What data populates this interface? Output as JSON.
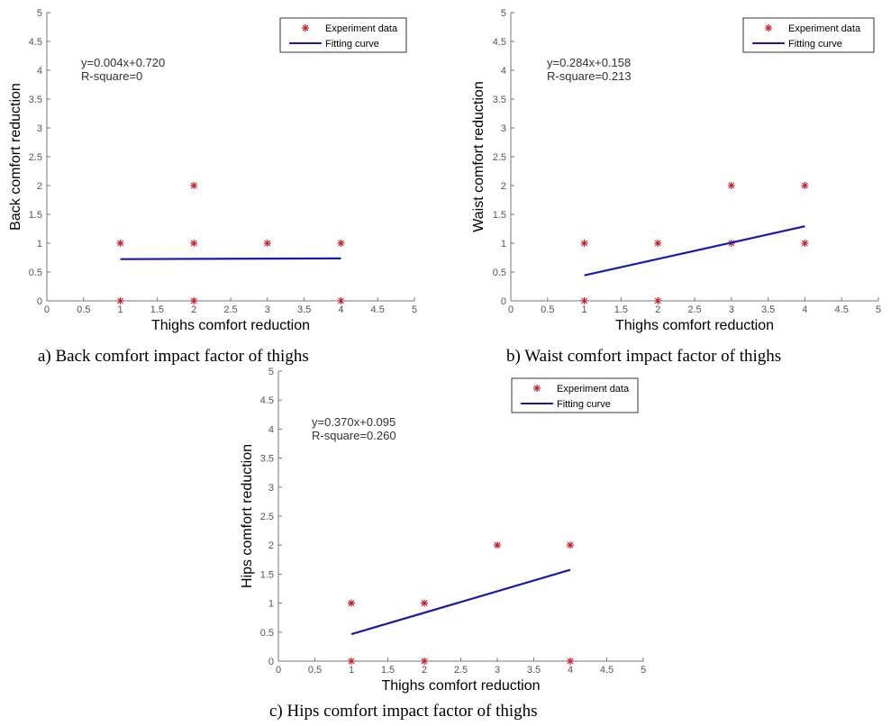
{
  "colors": {
    "marker": "#c8202a",
    "fit": "#1a1aa8",
    "axis": "#777777"
  },
  "chart_data": [
    {
      "type": "scatter",
      "panel": "a",
      "caption": "a) Back comfort impact factor of thighs",
      "xlabel": "Thighs comfort reduction",
      "ylabel": "Back comfort reduction",
      "xlim": [
        0,
        5
      ],
      "ylim": [
        0,
        5
      ],
      "x_ticks": [
        "0",
        "0.5",
        "1",
        "1.5",
        "2",
        "2.5",
        "3",
        "3.5",
        "4",
        "4.5",
        "5"
      ],
      "y_ticks": [
        "0",
        "0.5",
        "1",
        "1.5",
        "2",
        "2.5",
        "3",
        "3.5",
        "4",
        "4.5",
        "5"
      ],
      "series": [
        {
          "name": "Experiment data",
          "kind": "points",
          "x": [
            1,
            1,
            2,
            2,
            2,
            3,
            4,
            4
          ],
          "y": [
            1,
            0,
            2,
            1,
            0,
            1,
            1,
            0
          ]
        },
        {
          "name": "Fitting curve",
          "kind": "line",
          "x": [
            1,
            4
          ],
          "y": [
            0.724,
            0.736
          ]
        }
      ],
      "annotations": [
        "y=0.004x+0.720",
        "R-square=0"
      ],
      "legend": "top-right"
    },
    {
      "type": "scatter",
      "panel": "b",
      "caption": "b) Waist comfort impact factor of thighs",
      "xlabel": "Thighs comfort reduction",
      "ylabel": "Waist comfort reduction",
      "xlim": [
        0,
        5
      ],
      "ylim": [
        0,
        5
      ],
      "x_ticks": [
        "0",
        "0.5",
        "1",
        "1.5",
        "2",
        "2.5",
        "3",
        "3.5",
        "4",
        "4.5",
        "5"
      ],
      "y_ticks": [
        "0",
        "0.5",
        "1",
        "1.5",
        "2",
        "2.5",
        "3",
        "3.5",
        "4",
        "4.5",
        "5"
      ],
      "series": [
        {
          "name": "Experiment data",
          "kind": "points",
          "x": [
            1,
            1,
            2,
            2,
            3,
            3,
            4,
            4
          ],
          "y": [
            1,
            0,
            1,
            0,
            2,
            1,
            2,
            1
          ]
        },
        {
          "name": "Fitting curve",
          "kind": "line",
          "x": [
            1,
            4
          ],
          "y": [
            0.442,
            1.294
          ]
        }
      ],
      "annotations": [
        "y=0.284x+0.158",
        "R-square=0.213"
      ],
      "legend": "top-right"
    },
    {
      "type": "scatter",
      "panel": "c",
      "caption": "c) Hips comfort impact factor of thighs",
      "xlabel": "Thighs comfort reduction",
      "ylabel": "Hips comfort reduction",
      "xlim": [
        0,
        5
      ],
      "ylim": [
        0,
        5
      ],
      "x_ticks": [
        "0",
        "0.5",
        "1",
        "1.5",
        "2",
        "2.5",
        "3",
        "3.5",
        "4",
        "4.5",
        "5"
      ],
      "y_ticks": [
        "0",
        "0.5",
        "1",
        "1.5",
        "2",
        "2.5",
        "3",
        "3.5",
        "4",
        "4.5",
        "5"
      ],
      "series": [
        {
          "name": "Experiment data",
          "kind": "points",
          "x": [
            1,
            1,
            2,
            2,
            3,
            4,
            4
          ],
          "y": [
            1,
            0,
            1,
            0,
            2,
            2,
            0
          ]
        },
        {
          "name": "Fitting curve",
          "kind": "line",
          "x": [
            1,
            4
          ],
          "y": [
            0.465,
            1.575
          ]
        }
      ],
      "annotations": [
        "y=0.370x+0.095",
        "R-square=0.260"
      ],
      "legend": "top-right"
    }
  ]
}
